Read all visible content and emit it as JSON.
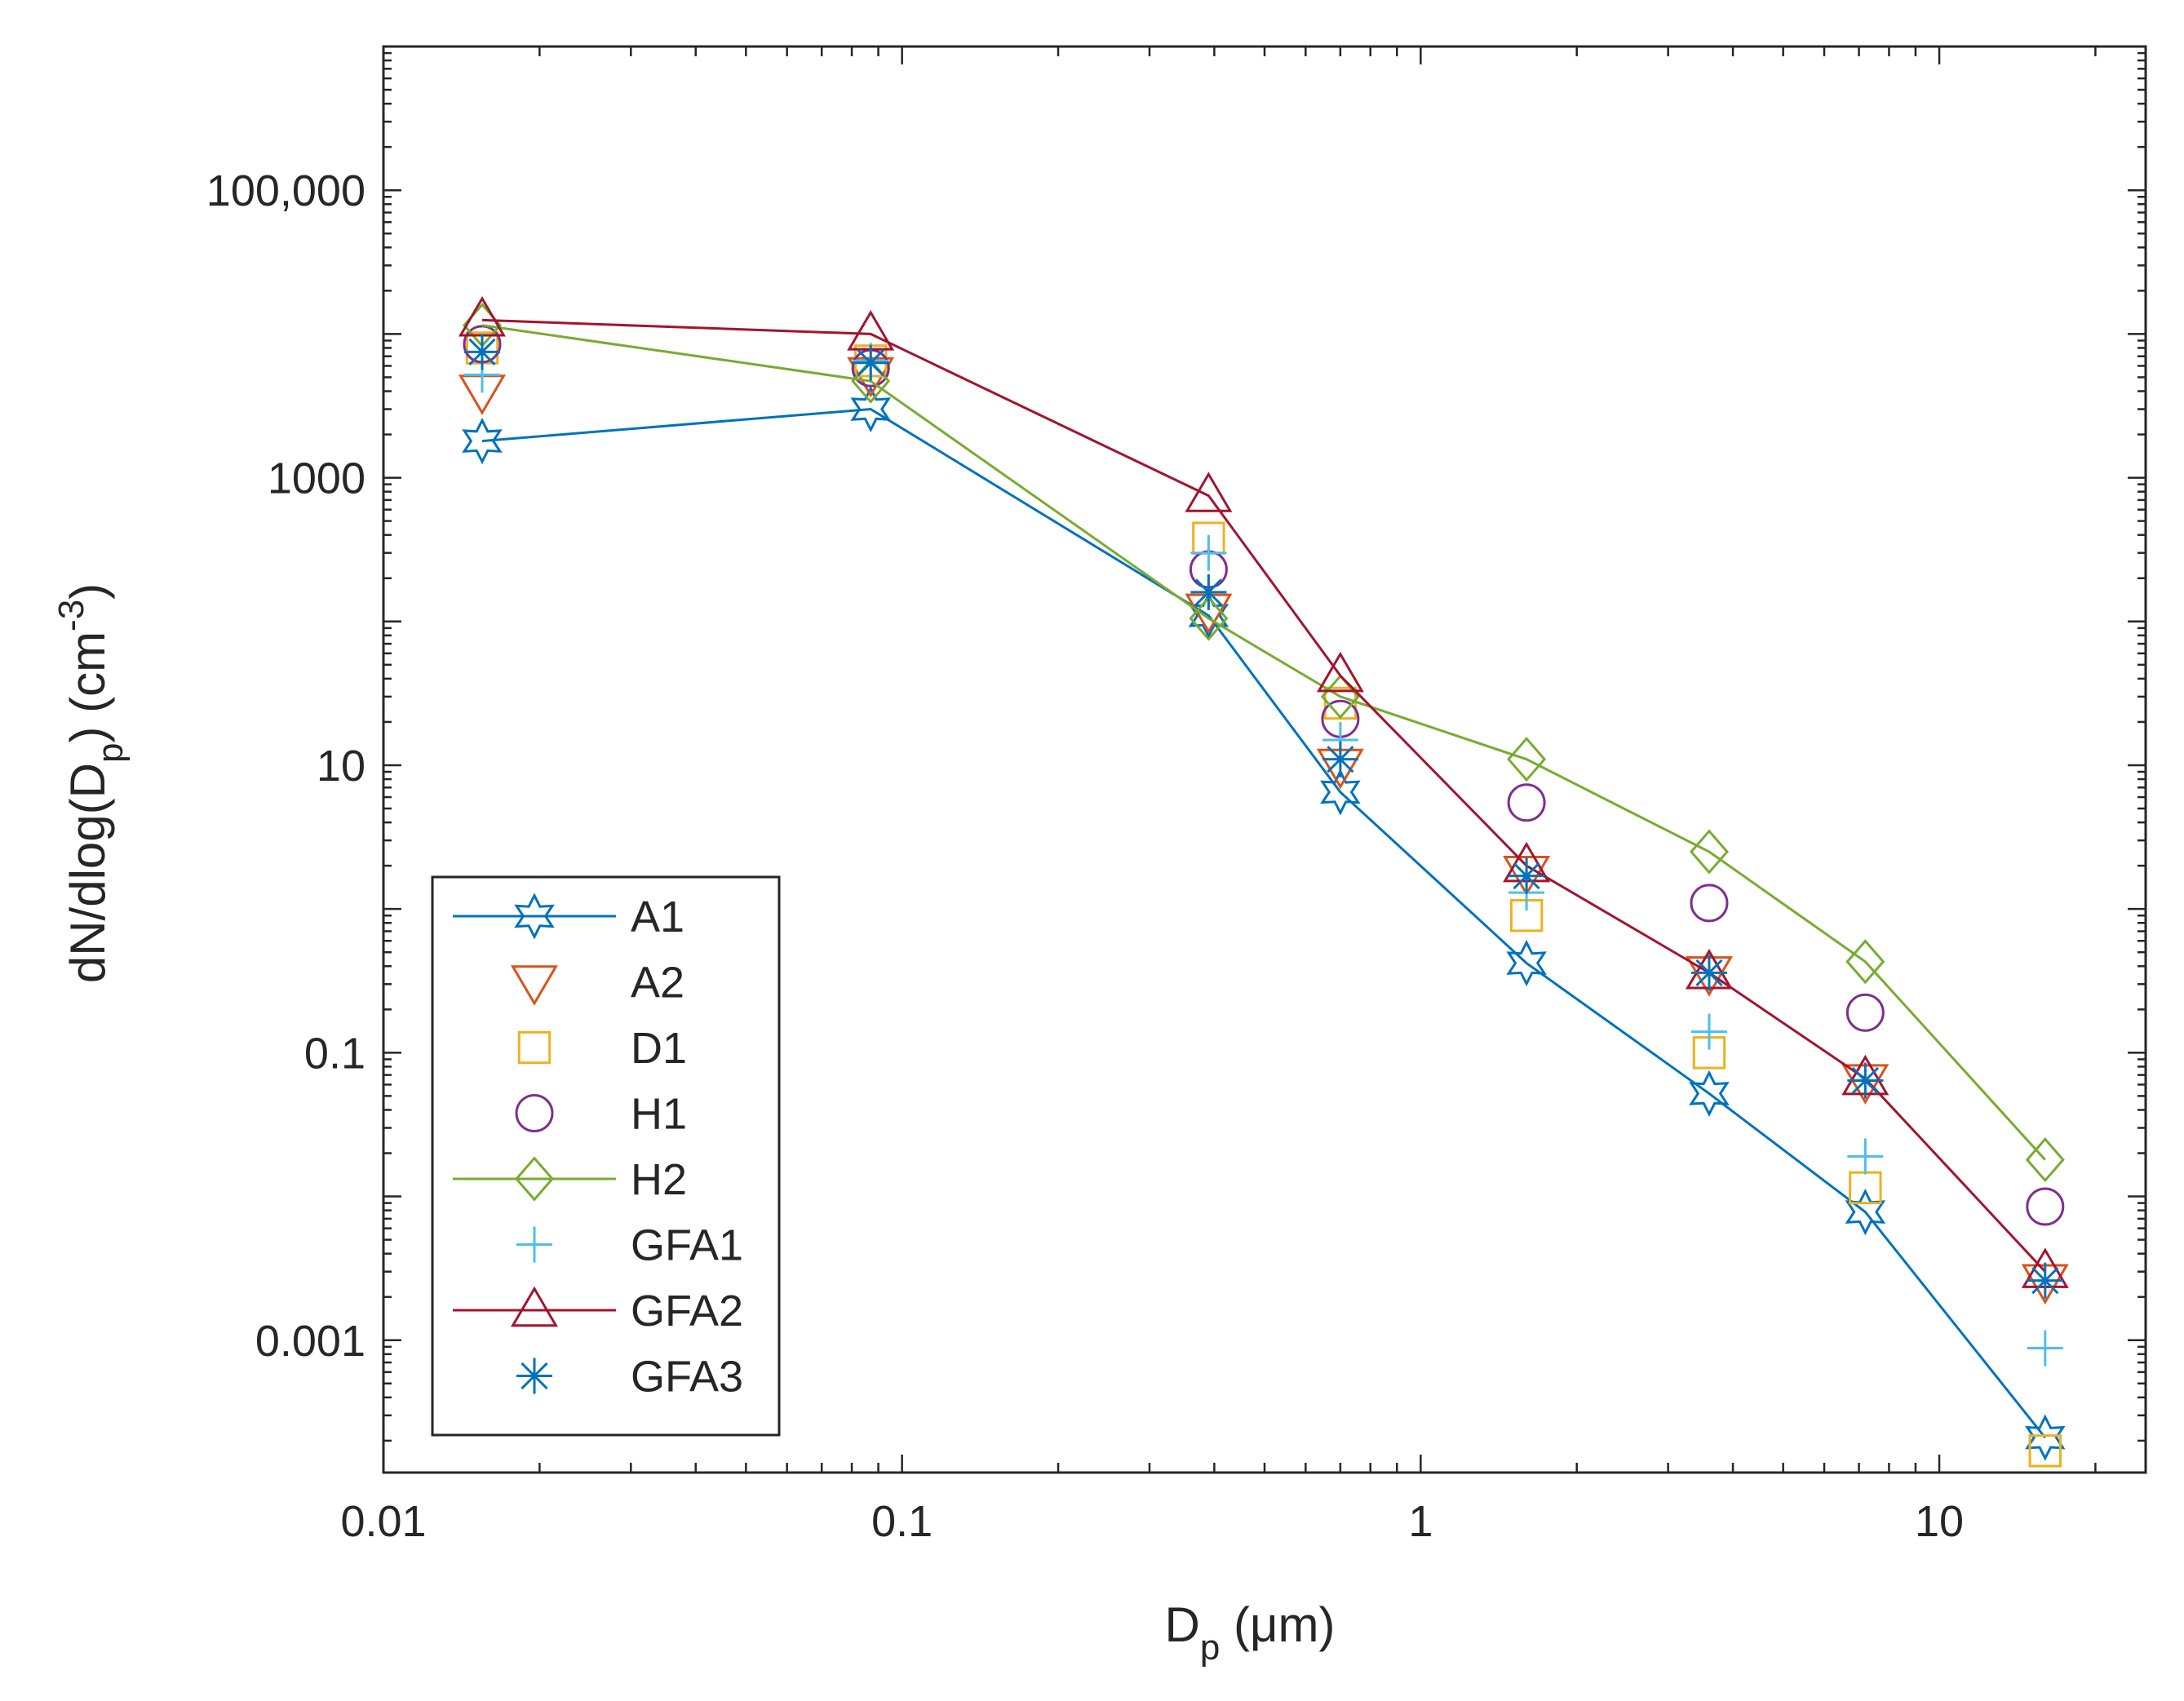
{
  "chart_data": {
    "type": "scatter",
    "title": "",
    "xlabel": {
      "main": "D",
      "sub": "p",
      "rest": " (μm)"
    },
    "ylabel": {
      "pre": "dN/dlog(D",
      "sub": "p",
      "mid": ") (cm",
      "sup": "-3",
      "post": ")"
    },
    "xscale": "log",
    "yscale": "log",
    "xlim": [
      0.01,
      25
    ],
    "ylim": [
      0.00012,
      1000000
    ],
    "xticks": [
      {
        "v": 0.01,
        "label": "0.01"
      },
      {
        "v": 0.1,
        "label": "0.1"
      },
      {
        "v": 1,
        "label": "1"
      },
      {
        "v": 10,
        "label": "10"
      }
    ],
    "yticks": [
      {
        "v": 0.001,
        "label": "0.001"
      },
      {
        "v": 0.1,
        "label": "0.1"
      },
      {
        "v": 10,
        "label": "10"
      },
      {
        "v": 1000,
        "label": "1000"
      },
      {
        "v": 100000,
        "label": "100,000"
      }
    ],
    "grid": false,
    "legend_position": "bottom-left",
    "x": [
      0.0155,
      0.087,
      0.39,
      0.7,
      1.6,
      3.6,
      7.2,
      16.0
    ],
    "series": [
      {
        "name": "A1",
        "marker": "hexagram",
        "line": true,
        "color": "#0072BD",
        "values": [
          1800,
          3000,
          110,
          6.5,
          0.42,
          0.052,
          0.0078,
          0.00021
        ]
      },
      {
        "name": "A2",
        "marker": "triangle-down",
        "line": false,
        "color": "#D95319",
        "values": [
          4000,
          5300,
          120,
          10,
          1.8,
          0.36,
          0.064,
          0.0026
        ]
      },
      {
        "name": "D1",
        "marker": "square",
        "line": false,
        "color": "#EDB120",
        "values": [
          8000,
          6500,
          380,
          27,
          0.9,
          0.1,
          0.0115,
          0.00017
        ]
      },
      {
        "name": "H1",
        "marker": "circle",
        "line": false,
        "color": "#7E2F8E",
        "values": [
          8500,
          5800,
          230,
          21,
          5.5,
          1.1,
          0.19,
          0.0085
        ]
      },
      {
        "name": "H2",
        "marker": "diamond",
        "line": true,
        "color": "#77AC30",
        "values": [
          11500,
          4700,
          105,
          30,
          11,
          2.5,
          0.43,
          0.018
        ]
      },
      {
        "name": "GFA1",
        "marker": "plus",
        "line": false,
        "color": "#4DBEEE",
        "values": [
          5200,
          6500,
          300,
          15,
          1.3,
          0.14,
          0.019,
          0.00088
        ]
      },
      {
        "name": "GFA2",
        "marker": "triangle-up",
        "line": true,
        "color": "#A2142F",
        "values": [
          12500,
          10000,
          750,
          42,
          2.0,
          0.36,
          0.066,
          0.003
        ]
      },
      {
        "name": "GFA3",
        "marker": "asterisk",
        "line": false,
        "color": "#0072BD",
        "values": [
          7500,
          6300,
          160,
          11,
          1.7,
          0.36,
          0.064,
          0.0026
        ]
      }
    ]
  }
}
